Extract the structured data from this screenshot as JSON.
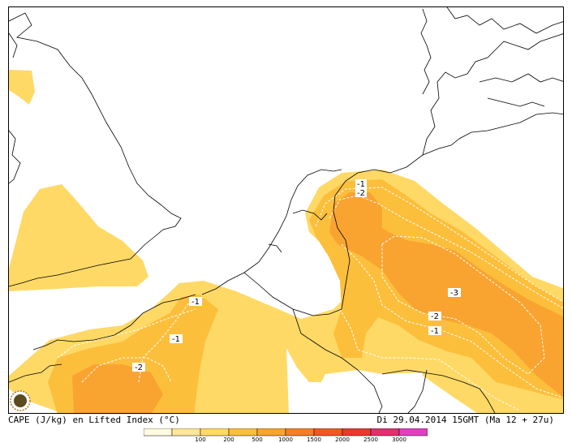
{
  "caption": {
    "left": "CAPE (J/kg) en Lifted Index (°C)",
    "right": "Di 29.04.2014 15GMT (Ma 12 + 27u)"
  },
  "legend": {
    "bins": [
      {
        "color": "#fffbe0"
      },
      {
        "color": "#ffe699",
        "label": "100"
      },
      {
        "color": "#ffd966",
        "label": "200"
      },
      {
        "color": "#fcbf3c",
        "label": "500"
      },
      {
        "color": "#f9a431",
        "label": "1000"
      },
      {
        "color": "#f57f28",
        "label": "1500"
      },
      {
        "color": "#ee5a22",
        "label": "2000"
      },
      {
        "color": "#e83a2e",
        "label": "2500"
      },
      {
        "color": "#e0306e",
        "label": "3000"
      },
      {
        "color": "#e040c0"
      }
    ]
  },
  "contour_labels": {
    "nl_1": "-1",
    "nl_2": "-2",
    "de_3": "-3",
    "de_2": "-2",
    "de_1": "-1",
    "fr_1a": "-1",
    "fr_1b": "-1",
    "fr_2": "-2"
  },
  "colors": {
    "cape_light": "#ffd966",
    "cape_mid": "#fcbf3c",
    "cape_high": "#f9a431",
    "coast": "#000000"
  },
  "icons": {
    "logo": "sun-logo-icon"
  }
}
